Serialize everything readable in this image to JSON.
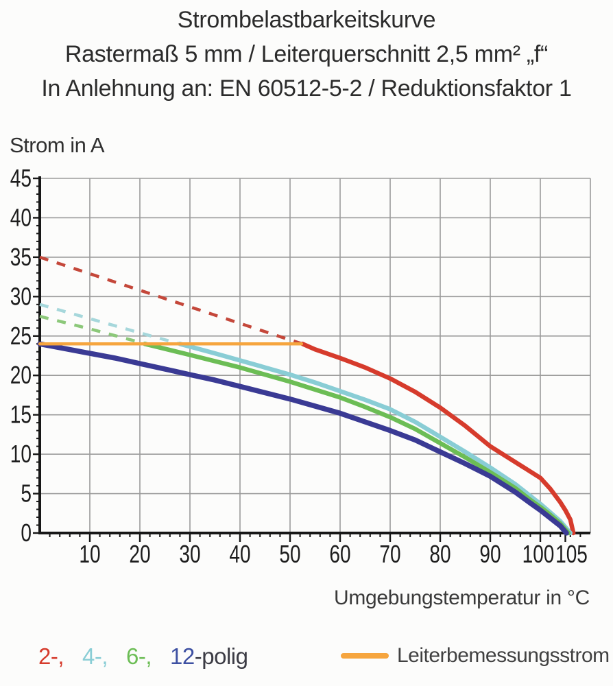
{
  "title": {
    "line1": "Strombelastbarkeitskurve",
    "line2": "Rastermaß 5 mm / Leiterquerschnitt 2,5 mm² „f“",
    "line3": "In Anlehnung an: EN 60512-5-2 / Reduktionsfaktor 1"
  },
  "chart_data": {
    "type": "line",
    "title": "Strombelastbarkeitskurve",
    "xlabel": "Umgebungstemperatur in °C",
    "ylabel": "Strom in A",
    "xlim": [
      0,
      110
    ],
    "ylim": [
      0,
      45
    ],
    "grid": true,
    "grid_color": "#9b9b9b",
    "axis_color": "#171717",
    "tick_label_color": "#1d1d1d",
    "x_major_ticks": [
      10,
      20,
      30,
      40,
      50,
      60,
      70,
      80,
      90,
      100,
      105
    ],
    "x_gridlines": [
      10,
      20,
      30,
      40,
      50,
      60,
      70,
      80,
      90,
      100,
      110
    ],
    "x_minor_step": 2,
    "y_major_ticks": [
      0,
      5,
      10,
      15,
      20,
      25,
      30,
      35,
      40,
      45
    ],
    "y_gridlines": [
      5,
      10,
      15,
      20,
      25,
      30,
      35,
      40,
      45
    ],
    "y_minor_step": 1,
    "rated_current_line": {
      "label": "Leiterbemessungsstrom",
      "value_a": 24,
      "color": "#F6A53E",
      "x_start": 0,
      "x_end": 52.3
    },
    "series": [
      {
        "name": "2-polig",
        "poles": 2,
        "color": "#D63B2C",
        "dash_color": "#C4473A",
        "stroke_width": 6.5,
        "dashed_points": [
          [
            0,
            35
          ],
          [
            10,
            32.9
          ],
          [
            20,
            30.8
          ],
          [
            30,
            28.7
          ],
          [
            40,
            26.6
          ],
          [
            50,
            24.5
          ],
          [
            52.5,
            24
          ]
        ],
        "solid_points": [
          [
            52.5,
            24
          ],
          [
            55,
            23.3
          ],
          [
            60,
            22.2
          ],
          [
            65,
            21.0
          ],
          [
            70,
            19.6
          ],
          [
            75,
            17.9
          ],
          [
            80,
            15.9
          ],
          [
            85,
            13.6
          ],
          [
            90,
            11.0
          ],
          [
            95,
            9.0
          ],
          [
            100,
            7.0
          ],
          [
            102,
            5.6
          ],
          [
            104,
            3.9
          ],
          [
            105,
            2.9
          ],
          [
            106,
            1.7
          ],
          [
            106.6,
            0
          ]
        ]
      },
      {
        "name": "4-polig",
        "poles": 4,
        "color": "#89CDD5",
        "dash_color": "#A6D7DB",
        "stroke_width": 6.5,
        "dashed_points": [
          [
            0,
            29
          ],
          [
            10,
            27.2
          ],
          [
            20,
            25.4
          ],
          [
            28,
            24
          ]
        ],
        "solid_points": [
          [
            28,
            24
          ],
          [
            35,
            22.8
          ],
          [
            40,
            21.9
          ],
          [
            45,
            21.0
          ],
          [
            50,
            20.1
          ],
          [
            55,
            19.1
          ],
          [
            60,
            18.0
          ],
          [
            65,
            16.9
          ],
          [
            70,
            15.7
          ],
          [
            75,
            14.1
          ],
          [
            80,
            12.2
          ],
          [
            85,
            10.3
          ],
          [
            90,
            8.3
          ],
          [
            95,
            6.2
          ],
          [
            98,
            4.7
          ],
          [
            100,
            3.7
          ],
          [
            102,
            2.6
          ],
          [
            104,
            1.5
          ],
          [
            106,
            0
          ]
        ]
      },
      {
        "name": "6-polig",
        "poles": 6,
        "color": "#6CBD55",
        "dash_color": "#8CC87A",
        "stroke_width": 6.5,
        "dashed_points": [
          [
            0,
            27.5
          ],
          [
            10,
            25.9
          ],
          [
            20,
            24.2
          ],
          [
            21,
            24
          ]
        ],
        "solid_points": [
          [
            21,
            24
          ],
          [
            30,
            22.6
          ],
          [
            40,
            21.0
          ],
          [
            50,
            19.2
          ],
          [
            55,
            18.2
          ],
          [
            60,
            17.2
          ],
          [
            65,
            16.0
          ],
          [
            70,
            14.7
          ],
          [
            75,
            13.2
          ],
          [
            80,
            11.4
          ],
          [
            85,
            9.6
          ],
          [
            90,
            7.7
          ],
          [
            95,
            5.7
          ],
          [
            98,
            4.2
          ],
          [
            100,
            3.3
          ],
          [
            102,
            2.3
          ],
          [
            104,
            1.2
          ],
          [
            105.6,
            0
          ]
        ]
      },
      {
        "name": "12-polig",
        "poles": 12,
        "color": "#3A3A94",
        "dash_color": null,
        "stroke_width": 7.5,
        "dashed_points": [],
        "solid_points": [
          [
            0,
            24
          ],
          [
            5,
            23.4
          ],
          [
            10,
            22.8
          ],
          [
            15,
            22.2
          ],
          [
            20,
            21.5
          ],
          [
            25,
            20.8
          ],
          [
            30,
            20.1
          ],
          [
            35,
            19.4
          ],
          [
            40,
            18.6
          ],
          [
            45,
            17.8
          ],
          [
            50,
            17.0
          ],
          [
            55,
            16.1
          ],
          [
            60,
            15.2
          ],
          [
            65,
            14.1
          ],
          [
            70,
            13.0
          ],
          [
            75,
            11.8
          ],
          [
            80,
            10.3
          ],
          [
            85,
            8.8
          ],
          [
            90,
            7.2
          ],
          [
            95,
            5.2
          ],
          [
            98,
            3.8
          ],
          [
            100,
            2.9
          ],
          [
            102,
            1.9
          ],
          [
            104,
            0.9
          ],
          [
            105.2,
            0
          ]
        ]
      }
    ]
  },
  "legend": {
    "pole_entries": [
      {
        "label": "2-,",
        "name": "2-polig",
        "color": "#D63B2C"
      },
      {
        "label": "4-,",
        "name": "4-polig",
        "color": "#89CDD5"
      },
      {
        "label": "6-,",
        "name": "6-polig",
        "color": "#6CBD55"
      },
      {
        "label": "12",
        "name": "12-polig",
        "color": "#3D50A2"
      }
    ],
    "suffix": "-polig",
    "rated_label": "Leiterbemessungsstrom",
    "rated_color": "#F6A53E"
  }
}
